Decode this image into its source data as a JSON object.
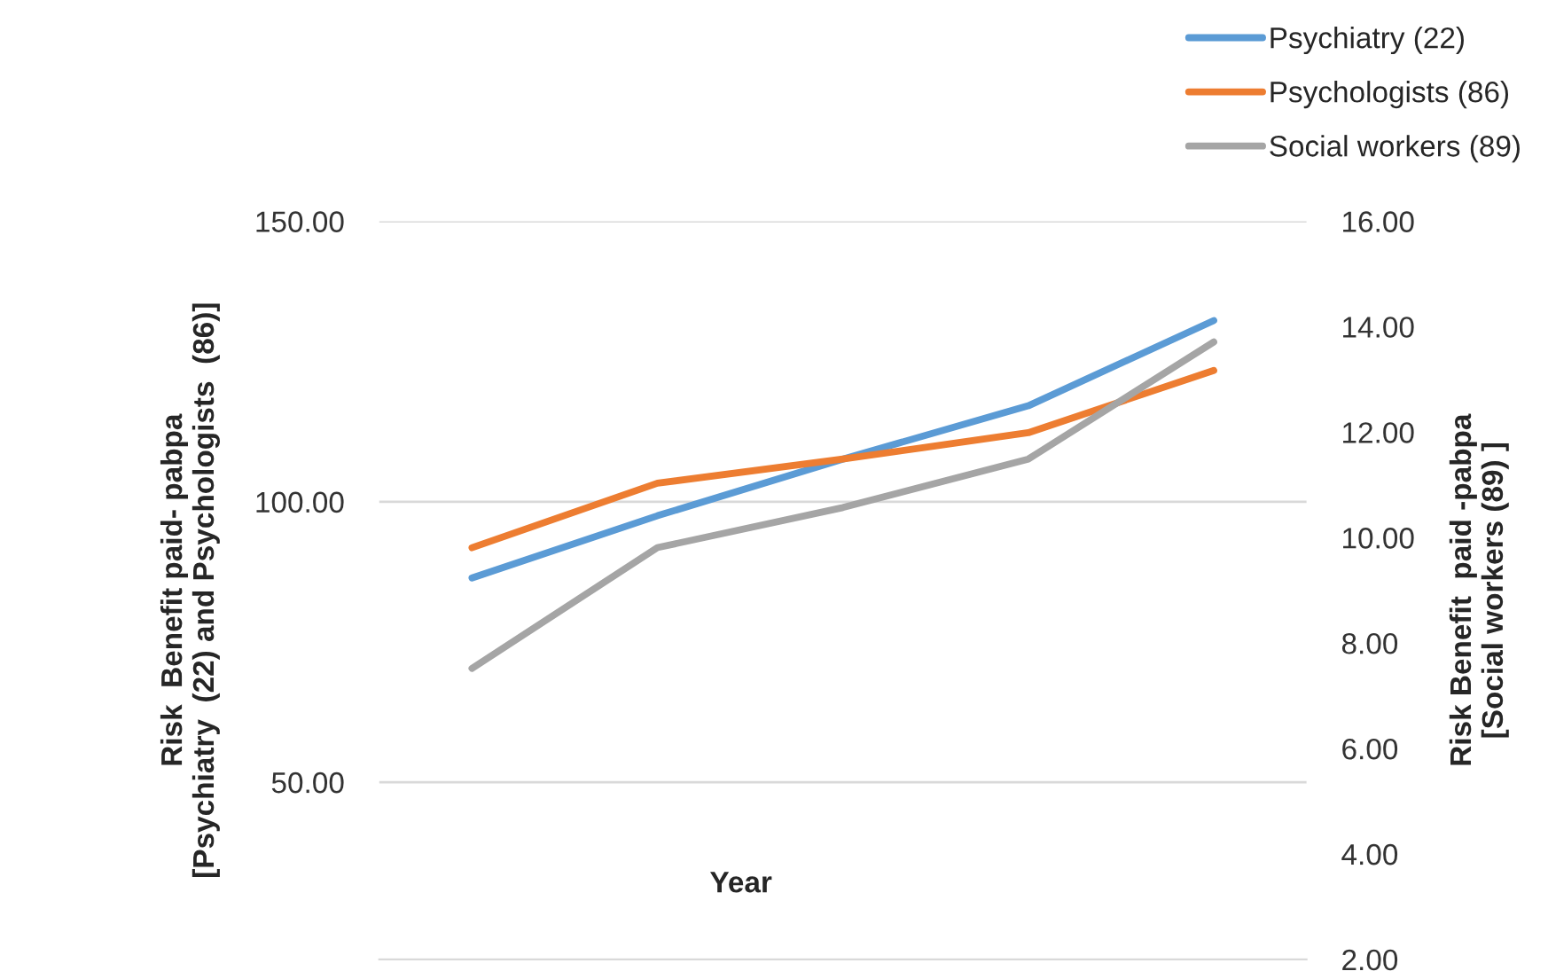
{
  "chart_data": {
    "type": "line",
    "categories": [
      null,
      null,
      null,
      null,
      null
    ],
    "xlabel": "Year",
    "ylabel": "Risk  Benefit paid- pabpa\n[Psychiatry  (22) and Psychologists  (86)]",
    "y2label": "Risk Benefit  paid -pabpa\n[Social workers (89) ]",
    "series": [
      {
        "name": "Psychiatry (22)",
        "color": "#5b9bd5",
        "values": [
          86.4,
          97.5,
          107.6,
          117.1,
          132.3
        ]
      },
      {
        "name": "Psychologists (86)",
        "color": "#ed7d31",
        "values": [
          91.8,
          103.3,
          107.6,
          112.3,
          123.4
        ]
      },
      {
        "name": "Social workers (89)",
        "color": "#a5a5a5",
        "axis": "y2",
        "values": [
          7.52,
          9.81,
          10.57,
          11.49,
          13.71
        ]
      }
    ],
    "ylim": [
      18.4,
      150
    ],
    "yticks": [
      {
        "value": 50,
        "label": "50.00"
      },
      {
        "value": 100,
        "label": "100.00"
      },
      {
        "value": 150,
        "label": "150.00"
      }
    ],
    "y2lim": [
      2,
      16
    ],
    "y2ticks": [
      {
        "value": 2,
        "label": "2.00"
      },
      {
        "value": 4,
        "label": "4.00"
      },
      {
        "value": 6,
        "label": "6.00"
      },
      {
        "value": 8,
        "label": "8.00"
      },
      {
        "value": 10,
        "label": "10.00"
      },
      {
        "value": 12,
        "label": "12.00"
      },
      {
        "value": 14,
        "label": "14.00"
      },
      {
        "value": 16,
        "label": "16.00"
      }
    ],
    "grid": "y",
    "legend": "top right",
    "line_style": "solid",
    "marker": "none"
  }
}
